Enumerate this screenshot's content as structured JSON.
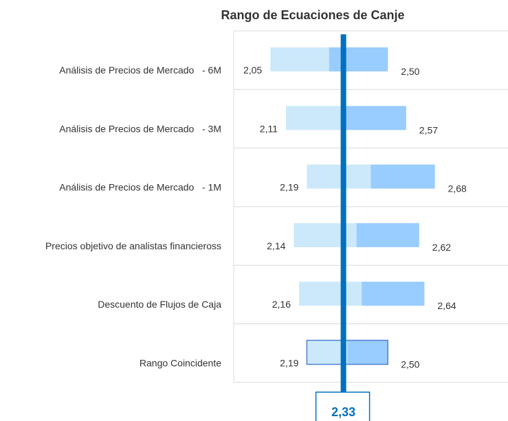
{
  "chart_data": {
    "type": "range_bar",
    "title": "Rango de Ecuaciones de Canje",
    "categories": [
      "Análisis de Precios de Mercado   - 6M",
      "Análisis de Precios de Mercado   - 3M",
      "Análisis de Precios de Mercado   - 1M",
      "Precios objetivo de analistas financieross",
      "Descuento de Flujos de Caja",
      "Rango Coincidente"
    ],
    "low_values": [
      2.05,
      2.11,
      2.19,
      2.14,
      2.16,
      2.19
    ],
    "low_labels": [
      "2,05",
      "2,11",
      "2,19",
      "2,14",
      "2,16",
      "2,19"
    ],
    "high_values": [
      2.5,
      2.57,
      2.68,
      2.62,
      2.64,
      2.5
    ],
    "high_labels": [
      "2,50",
      "2,57",
      "2,68",
      "2,62",
      "2,64",
      "2,50"
    ],
    "outlined": [
      false,
      false,
      false,
      false,
      false,
      true
    ],
    "reference": {
      "value": 2.33,
      "label": "2,33"
    },
    "xlim": [
      1.91,
      2.96
    ],
    "low_color": "#cce9fb",
    "high_color": "#99ccff",
    "outline_color": "#4a7fd6",
    "reference_color": "#0070c0",
    "grid_color": "#d9d9d9"
  }
}
